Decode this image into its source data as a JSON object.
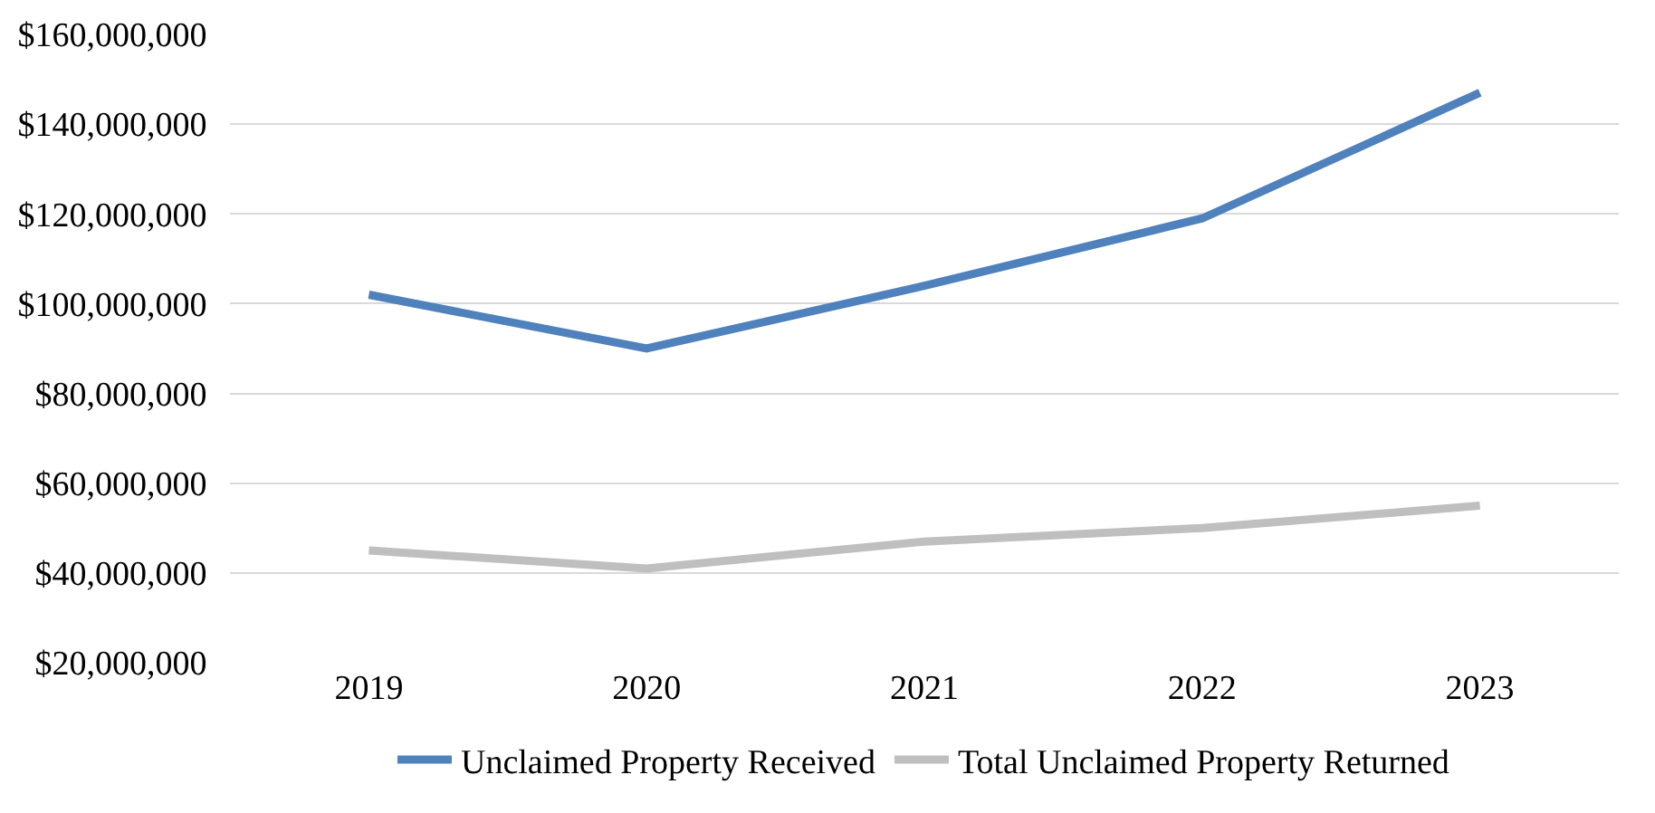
{
  "chart_data": {
    "type": "line",
    "categories": [
      "2019",
      "2020",
      "2021",
      "2022",
      "2023"
    ],
    "series": [
      {
        "name": "Unclaimed Property Received",
        "color": "#4f81bd",
        "values": [
          102000000,
          90000000,
          104000000,
          119000000,
          147000000
        ]
      },
      {
        "name": "Total Unclaimed Property Returned",
        "color": "#bfbfbf",
        "values": [
          45000000,
          41000000,
          47000000,
          50000000,
          55000000
        ]
      }
    ],
    "ylim": [
      20000000,
      160000000
    ],
    "yticks": [
      {
        "value": 20000000,
        "label": "$20,000,000"
      },
      {
        "value": 40000000,
        "label": "$40,000,000"
      },
      {
        "value": 60000000,
        "label": "$60,000,000"
      },
      {
        "value": 80000000,
        "label": "$80,000,000"
      },
      {
        "value": 100000000,
        "label": "$100,000,000"
      },
      {
        "value": 120000000,
        "label": "$120,000,000"
      },
      {
        "value": 140000000,
        "label": "$140,000,000"
      },
      {
        "value": 160000000,
        "label": "$160,000,000"
      }
    ],
    "grid": "y",
    "legend": "bottom",
    "marker": "none",
    "line_style": "solid"
  }
}
